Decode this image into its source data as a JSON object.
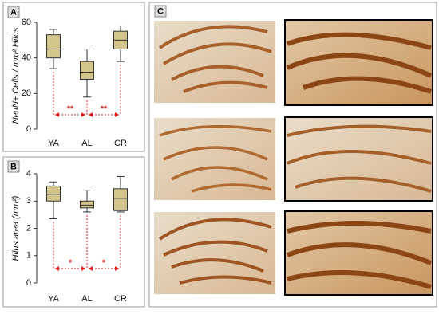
{
  "chart_data": [
    {
      "type": "box",
      "panel_label": "A",
      "ylabel": "NeuN+ Cells / mm² Hilus",
      "categories": [
        "YA",
        "AL",
        "CR"
      ],
      "boxes": [
        {
          "min": 34,
          "q1": 40,
          "median": 45,
          "q3": 53,
          "max": 56
        },
        {
          "min": 18,
          "q1": 28,
          "median": 32,
          "q3": 38,
          "max": 45
        },
        {
          "min": 38,
          "q1": 45,
          "median": 50,
          "q3": 55,
          "max": 58
        }
      ],
      "color": "#d2c68c",
      "annotation_color": "#e02020",
      "annotations": [
        "**",
        "**"
      ],
      "ylim": [
        0,
        60
      ],
      "yticks": [
        0,
        20,
        40,
        60
      ]
    },
    {
      "type": "box",
      "panel_label": "B",
      "ylabel": "Hilus area (mm²)",
      "categories": [
        "YA",
        "AL",
        "CR"
      ],
      "boxes": [
        {
          "min": 2.35,
          "q1": 3.0,
          "median": 3.25,
          "q3": 3.55,
          "max": 3.7
        },
        {
          "min": 2.6,
          "q1": 2.75,
          "median": 2.85,
          "q3": 3.0,
          "max": 3.4
        },
        {
          "min": 2.6,
          "q1": 2.65,
          "median": 3.1,
          "q3": 3.45,
          "max": 3.9
        }
      ],
      "color": "#d2c68c",
      "annotation_color": "#e02020",
      "annotations": [
        "*",
        "*"
      ],
      "ylim": [
        0,
        4
      ],
      "yticks": [
        0,
        1,
        2,
        3,
        4
      ]
    }
  ],
  "image_panel": {
    "label": "C"
  }
}
